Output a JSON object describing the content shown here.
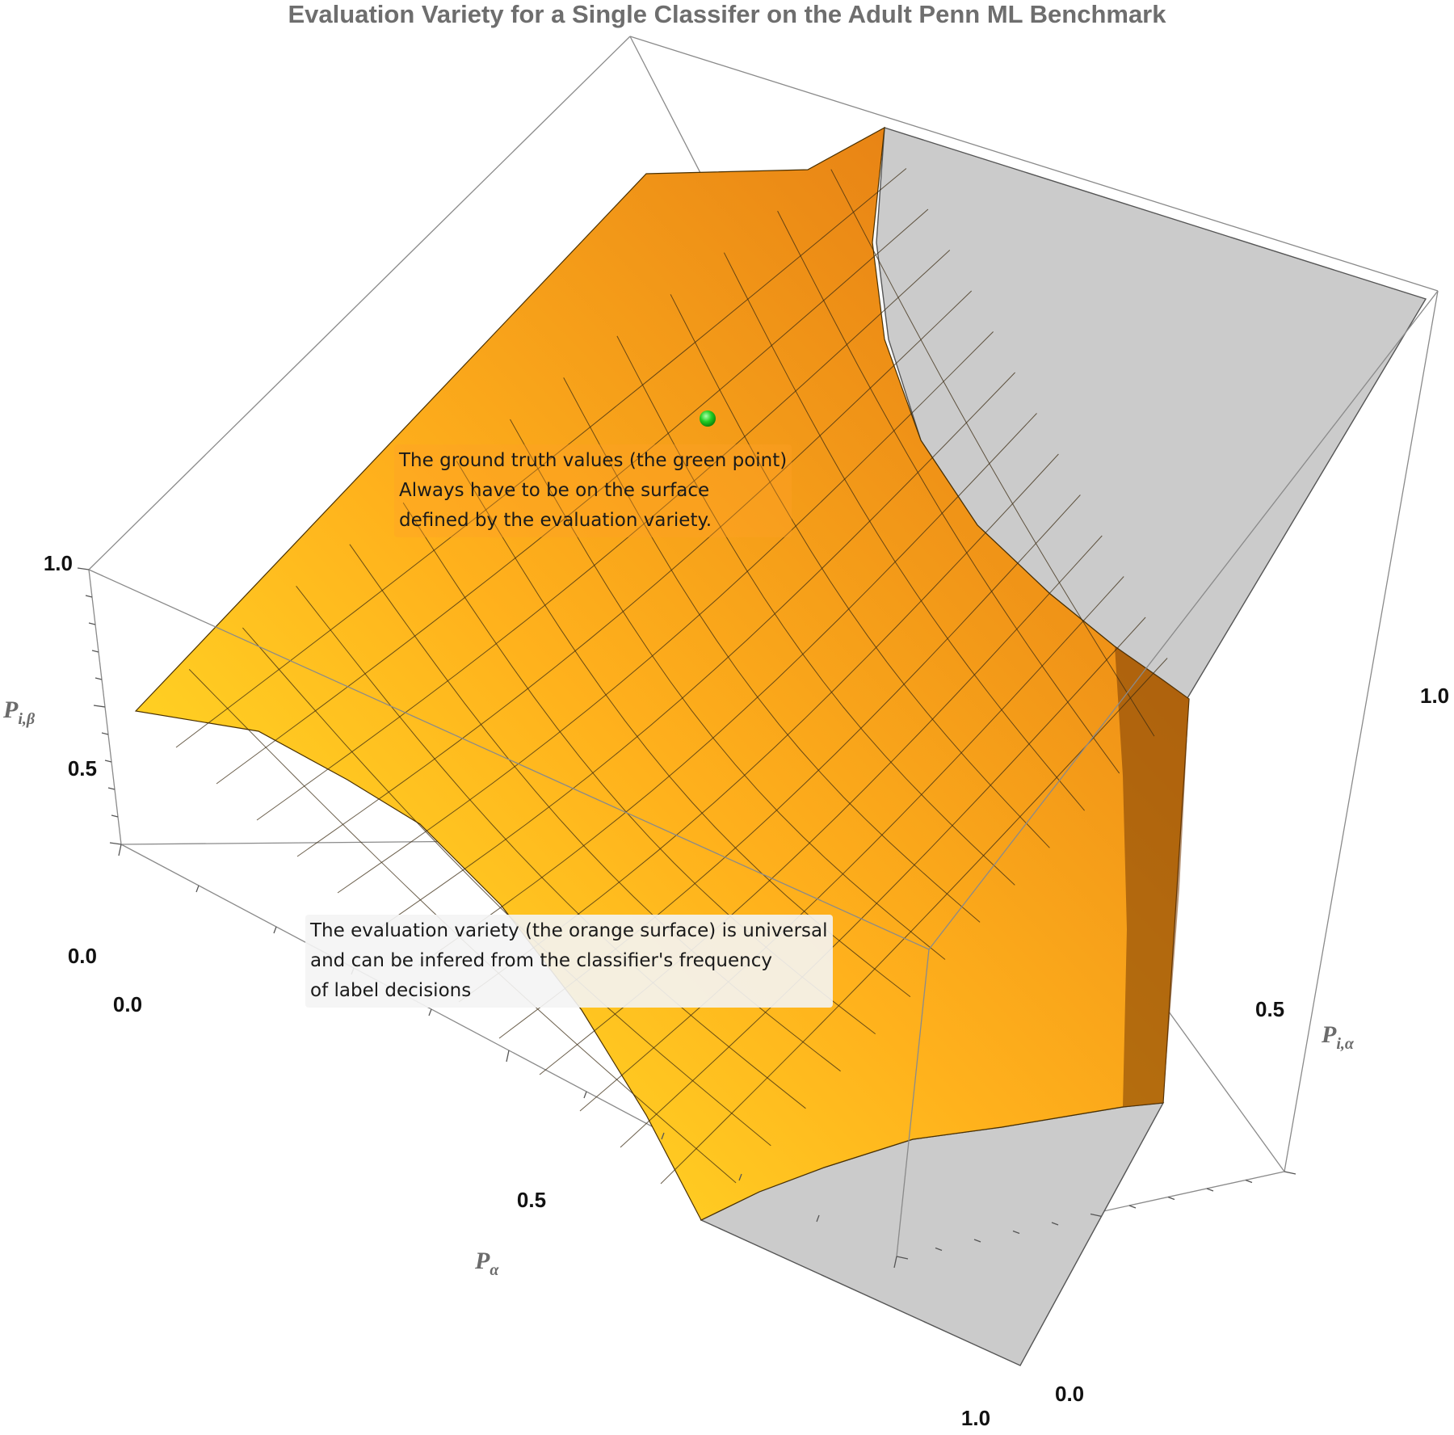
{
  "chart_data": {
    "type": "surface3d",
    "title": "Evaluation Variety for a Single Classifer on the Adult Penn ML Benchmark",
    "axes": {
      "x": {
        "label": "P",
        "sub": "α",
        "range": [
          0,
          1
        ],
        "ticks": [
          "0.0",
          "0.5",
          "1.0"
        ]
      },
      "y": {
        "label": "P",
        "sub": "i,α",
        "range": [
          0,
          1
        ],
        "ticks": [
          "0.0",
          "0.5",
          "1.0"
        ]
      },
      "z": {
        "label": "P",
        "sub": "i,β",
        "range": [
          0,
          1
        ],
        "ticks": [
          "0.0",
          "0.5",
          "1.0"
        ]
      }
    },
    "surface_color": "#ff9a1a",
    "low_color": "#ffea24",
    "clip_color": "#cbcbcb",
    "point": {
      "color": "#22cc22"
    },
    "annotations": [
      {
        "lines": [
          "The ground truth values (the green point)",
          "Always have to be on the surface",
          "defined by the evaluation variety."
        ]
      },
      {
        "lines": [
          "The evaluation variety (the orange surface) is universal",
          "and can be infered from the classifier's frequency",
          "of label decisions"
        ]
      }
    ]
  }
}
